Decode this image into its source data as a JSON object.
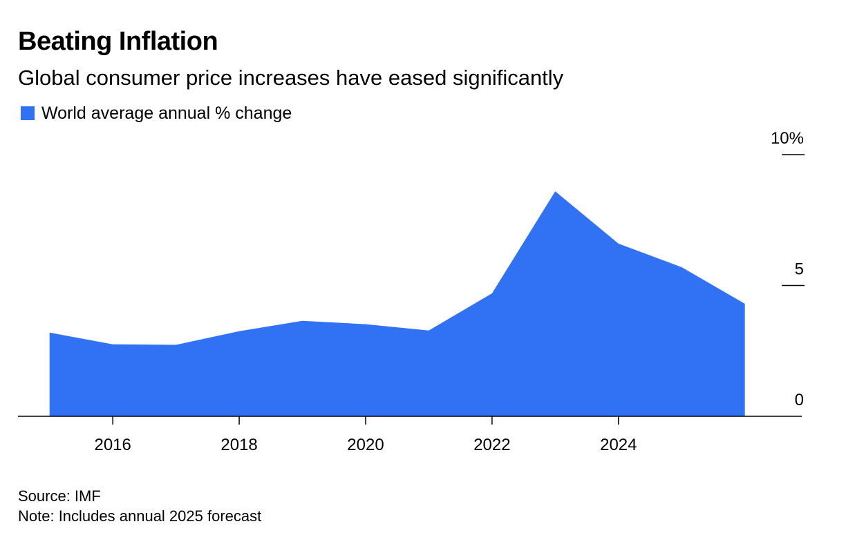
{
  "title": "Beating Inflation",
  "subtitle": "Global consumer price increases have eased significantly",
  "legend": {
    "label": "World average annual % change",
    "color": "#3172f5"
  },
  "footer": {
    "source": "Source: IMF",
    "note": "Note: Includes annual 2025 forecast"
  },
  "chart_data": {
    "type": "area",
    "title": "Beating Inflation",
    "subtitle": "Global consumer price increases have eased significantly",
    "xlabel": "",
    "ylabel": "",
    "x": [
      2015,
      2016,
      2017,
      2018,
      2019,
      2020,
      2021,
      2022,
      2023,
      2024,
      2025,
      2026
    ],
    "series": [
      {
        "name": "World average annual % change",
        "values": [
          3.2,
          2.75,
          2.73,
          3.25,
          3.65,
          3.52,
          3.28,
          4.7,
          8.6,
          6.6,
          5.7,
          4.3
        ],
        "color": "#3172f5"
      }
    ],
    "xlim": [
      2014.5,
      2026.9
    ],
    "ylim": [
      0,
      10
    ],
    "x_ticks": [
      2016,
      2018,
      2020,
      2022,
      2024
    ],
    "x_tick_labels": [
      "2016",
      "2018",
      "2020",
      "2022",
      "2024"
    ],
    "y_ticks": [
      0,
      5,
      10
    ],
    "y_tick_labels": [
      "0",
      "5",
      "10%"
    ],
    "y_axis_side": "right",
    "grid": false,
    "legend_position": "top-left"
  }
}
